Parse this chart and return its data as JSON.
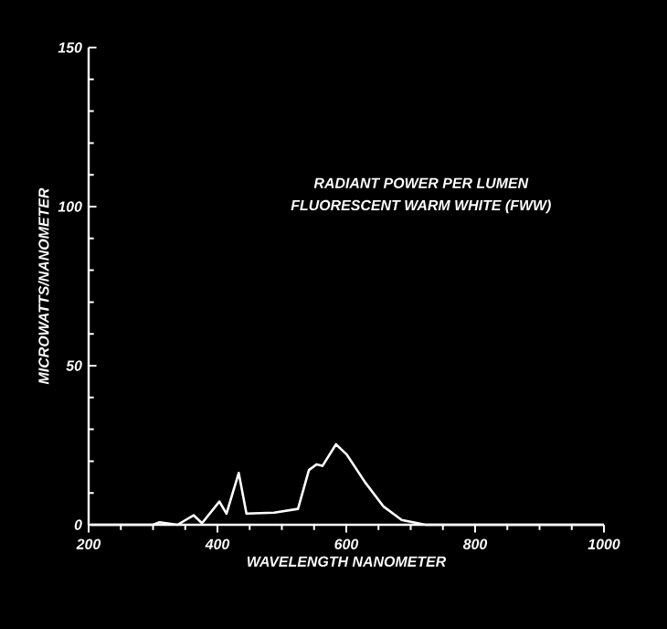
{
  "chart_data": {
    "type": "line",
    "title": "RADIANT POWER PER LUMEN",
    "subtitle": "FLUORESCENT WARM WHITE (FWW)",
    "xlabel": "WAVELENGTH NANOMETER",
    "ylabel": "MICROWATTS/NANOMETER",
    "xlim": [
      200,
      1000
    ],
    "ylim": [
      0,
      150
    ],
    "xticks": [
      200,
      400,
      600,
      800,
      1000
    ],
    "yticks": [
      0,
      50,
      100,
      150
    ],
    "grid": false,
    "marker": "none",
    "line_style": "solid",
    "series": [
      {
        "color": "#ffffff",
        "x": [
          204,
          300,
          310,
          338,
          363,
          376,
          403,
          414,
          433,
          445,
          488,
          525,
          542,
          554,
          563,
          584,
          601,
          629,
          658,
          686,
          723,
          1000
        ],
        "values": [
          0,
          0,
          0.8,
          0,
          3,
          0.5,
          7.3,
          3.5,
          16.3,
          3.5,
          3.8,
          5,
          17.2,
          19,
          18.5,
          25.3,
          22,
          13.4,
          5.7,
          1.5,
          0,
          0
        ]
      }
    ]
  }
}
